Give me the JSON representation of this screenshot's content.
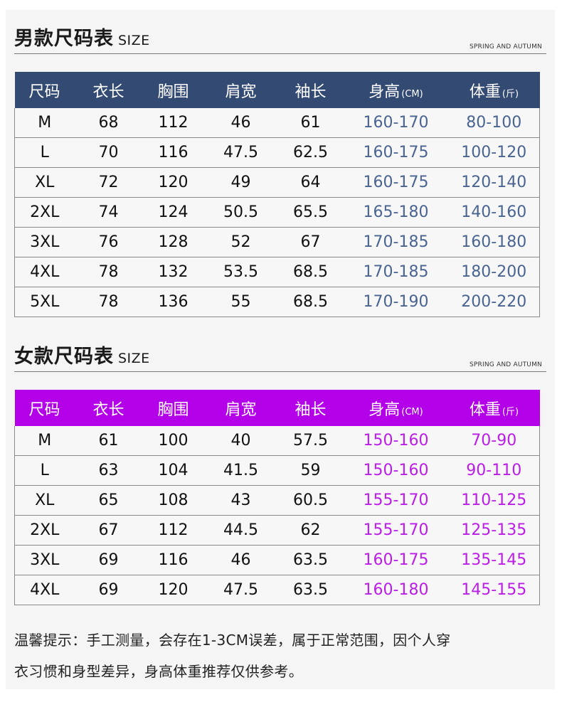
{
  "men": {
    "title": "男款尺码表",
    "title_suffix": "SIZE",
    "subtitle": "SPRING AND AUTUMN",
    "columns": [
      {
        "label": "尺码",
        "unit": ""
      },
      {
        "label": "衣长",
        "unit": ""
      },
      {
        "label": "胸围",
        "unit": ""
      },
      {
        "label": "肩宽",
        "unit": ""
      },
      {
        "label": "袖长",
        "unit": ""
      },
      {
        "label": "身高",
        "unit": "(CM)"
      },
      {
        "label": "体重",
        "unit": "(斤)"
      }
    ],
    "rows": [
      [
        "M",
        "68",
        "112",
        "46",
        "61",
        "160-170",
        "80-100"
      ],
      [
        "L",
        "70",
        "116",
        "47.5",
        "62.5",
        "160-175",
        "100-120"
      ],
      [
        "XL",
        "72",
        "120",
        "49",
        "64",
        "160-175",
        "120-140"
      ],
      [
        "2XL",
        "74",
        "124",
        "50.5",
        "65.5",
        "165-180",
        "140-160"
      ],
      [
        "3XL",
        "76",
        "128",
        "52",
        "67",
        "170-185",
        "160-180"
      ],
      [
        "4XL",
        "78",
        "132",
        "53.5",
        "68.5",
        "170-185",
        "180-200"
      ],
      [
        "5XL",
        "78",
        "136",
        "55",
        "68.5",
        "170-190",
        "200-220"
      ]
    ],
    "header_color": "#334a73",
    "accent_color": "#4a6491"
  },
  "women": {
    "title": "女款尺码表",
    "title_suffix": "SIZE",
    "subtitle": "SPRING AND AUTUMN",
    "columns": [
      {
        "label": "尺码",
        "unit": ""
      },
      {
        "label": "衣长",
        "unit": ""
      },
      {
        "label": "胸围",
        "unit": ""
      },
      {
        "label": "肩宽",
        "unit": ""
      },
      {
        "label": "袖长",
        "unit": ""
      },
      {
        "label": "身高",
        "unit": "(CM)"
      },
      {
        "label": "体重",
        "unit": "(斤)"
      }
    ],
    "rows": [
      [
        "M",
        "61",
        "100",
        "40",
        "57.5",
        "150-160",
        "70-90"
      ],
      [
        "L",
        "63",
        "104",
        "41.5",
        "59",
        "150-160",
        "90-110"
      ],
      [
        "XL",
        "65",
        "108",
        "43",
        "60.5",
        "155-170",
        "110-125"
      ],
      [
        "2XL",
        "67",
        "112",
        "44.5",
        "62",
        "155-170",
        "125-135"
      ],
      [
        "3XL",
        "69",
        "116",
        "46",
        "63.5",
        "160-175",
        "135-145"
      ],
      [
        "4XL",
        "69",
        "120",
        "47.5",
        "63.5",
        "160-180",
        "145-155"
      ]
    ],
    "header_color": "#b400e8",
    "accent_color": "#bb1ce8"
  },
  "tip": {
    "line1": "温馨提示：手工测量，会存在1-3CM误差，属于正常范围，因个人穿",
    "line2": "衣习惯和身型差异，身高体重推荐仅供参考。"
  }
}
